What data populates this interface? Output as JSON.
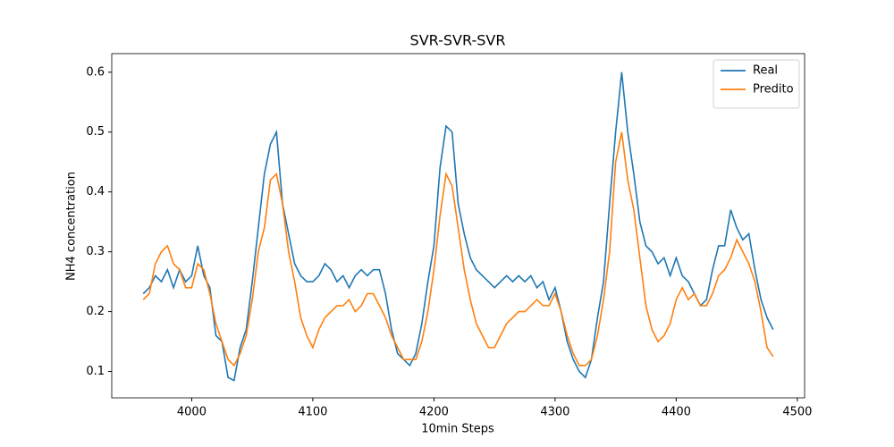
{
  "chart_data": {
    "type": "line",
    "title": "SVR-SVR-SVR",
    "xlabel": "10min Steps",
    "ylabel": "NH4 concentration",
    "x": [
      3960,
      3965,
      3970,
      3975,
      3980,
      3985,
      3990,
      3995,
      4000,
      4005,
      4010,
      4015,
      4020,
      4025,
      4030,
      4035,
      4040,
      4045,
      4050,
      4055,
      4060,
      4065,
      4070,
      4075,
      4080,
      4085,
      4090,
      4095,
      4100,
      4105,
      4110,
      4115,
      4120,
      4125,
      4130,
      4135,
      4140,
      4145,
      4150,
      4155,
      4160,
      4165,
      4170,
      4175,
      4180,
      4185,
      4190,
      4195,
      4200,
      4205,
      4210,
      4215,
      4220,
      4225,
      4230,
      4235,
      4240,
      4245,
      4250,
      4255,
      4260,
      4265,
      4270,
      4275,
      4280,
      4285,
      4290,
      4295,
      4300,
      4305,
      4310,
      4315,
      4320,
      4325,
      4330,
      4335,
      4340,
      4345,
      4350,
      4355,
      4360,
      4365,
      4370,
      4375,
      4380,
      4385,
      4390,
      4395,
      4400,
      4405,
      4410,
      4415,
      4420,
      4425,
      4430,
      4435,
      4440,
      4445,
      4450,
      4455,
      4460,
      4465,
      4470,
      4475,
      4480
    ],
    "series": [
      {
        "name": "Real",
        "color": "#1f77b4",
        "values": [
          0.23,
          0.24,
          0.26,
          0.25,
          0.27,
          0.24,
          0.27,
          0.25,
          0.26,
          0.31,
          0.26,
          0.24,
          0.16,
          0.15,
          0.09,
          0.085,
          0.14,
          0.17,
          0.25,
          0.34,
          0.43,
          0.48,
          0.5,
          0.38,
          0.33,
          0.28,
          0.26,
          0.25,
          0.25,
          0.26,
          0.28,
          0.27,
          0.25,
          0.26,
          0.24,
          0.26,
          0.27,
          0.26,
          0.27,
          0.27,
          0.23,
          0.17,
          0.13,
          0.12,
          0.11,
          0.13,
          0.18,
          0.25,
          0.31,
          0.44,
          0.51,
          0.5,
          0.38,
          0.33,
          0.29,
          0.27,
          0.26,
          0.25,
          0.24,
          0.25,
          0.26,
          0.25,
          0.26,
          0.25,
          0.26,
          0.24,
          0.25,
          0.22,
          0.24,
          0.2,
          0.15,
          0.12,
          0.1,
          0.09,
          0.12,
          0.19,
          0.25,
          0.38,
          0.5,
          0.6,
          0.5,
          0.43,
          0.35,
          0.31,
          0.3,
          0.28,
          0.29,
          0.26,
          0.29,
          0.26,
          0.25,
          0.23,
          0.21,
          0.22,
          0.27,
          0.31,
          0.31,
          0.37,
          0.34,
          0.32,
          0.33,
          0.27,
          0.22,
          0.19,
          0.17
        ]
      },
      {
        "name": "Predito",
        "color": "#ff7f0e",
        "values": [
          0.22,
          0.23,
          0.28,
          0.3,
          0.31,
          0.28,
          0.27,
          0.24,
          0.24,
          0.28,
          0.27,
          0.23,
          0.18,
          0.15,
          0.12,
          0.11,
          0.13,
          0.16,
          0.22,
          0.3,
          0.34,
          0.42,
          0.43,
          0.38,
          0.3,
          0.25,
          0.19,
          0.16,
          0.14,
          0.17,
          0.19,
          0.2,
          0.21,
          0.21,
          0.22,
          0.2,
          0.21,
          0.23,
          0.23,
          0.21,
          0.19,
          0.16,
          0.14,
          0.12,
          0.12,
          0.12,
          0.15,
          0.2,
          0.27,
          0.36,
          0.43,
          0.41,
          0.34,
          0.27,
          0.22,
          0.18,
          0.16,
          0.14,
          0.14,
          0.16,
          0.18,
          0.19,
          0.2,
          0.2,
          0.21,
          0.22,
          0.21,
          0.21,
          0.23,
          0.2,
          0.16,
          0.13,
          0.11,
          0.11,
          0.12,
          0.16,
          0.22,
          0.3,
          0.45,
          0.5,
          0.42,
          0.37,
          0.29,
          0.21,
          0.17,
          0.15,
          0.16,
          0.18,
          0.22,
          0.24,
          0.22,
          0.23,
          0.21,
          0.21,
          0.23,
          0.26,
          0.27,
          0.29,
          0.32,
          0.3,
          0.28,
          0.25,
          0.2,
          0.14,
          0.125
        ]
      }
    ],
    "xlim": [
      3934,
      4506
    ],
    "ylim": [
      0.056,
      0.631
    ],
    "xticks": [
      4000,
      4100,
      4200,
      4300,
      4400,
      4500
    ],
    "yticks": [
      0.1,
      0.2,
      0.3,
      0.4,
      0.5,
      0.6
    ],
    "legend": "upper right"
  }
}
